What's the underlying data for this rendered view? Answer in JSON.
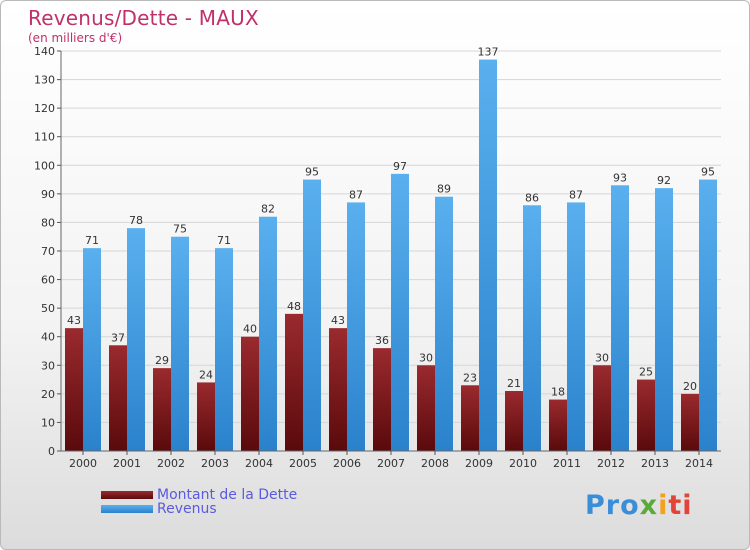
{
  "header": {
    "title": "Revenus/Dette - MAUX",
    "subtitle": "(en milliers d'€)"
  },
  "colors": {
    "title": "#c0306a",
    "dette": "#7a1518",
    "revenus": "#3a98e0",
    "legend_text": "#5a5ae0"
  },
  "legend": {
    "items": [
      {
        "label": "Montant de la Dette",
        "color": "#7a1518"
      },
      {
        "label": "Revenus",
        "color": "#3a98e0"
      }
    ]
  },
  "logo": {
    "text": "Proxiti",
    "parts": [
      "Pro",
      "x",
      "i",
      "ti"
    ]
  },
  "chart_data": {
    "type": "bar",
    "title": "Revenus/Dette - MAUX",
    "subtitle": "(en milliers d'€)",
    "categories": [
      "2000",
      "2001",
      "2002",
      "2003",
      "2004",
      "2005",
      "2006",
      "2007",
      "2008",
      "2009",
      "2010",
      "2011",
      "2012",
      "2013",
      "2014"
    ],
    "series": [
      {
        "name": "Montant de la Dette",
        "values": [
          43,
          37,
          29,
          24,
          40,
          48,
          43,
          36,
          30,
          23,
          21,
          18,
          30,
          25,
          20
        ]
      },
      {
        "name": "Revenus",
        "values": [
          71,
          78,
          75,
          71,
          82,
          95,
          87,
          97,
          89,
          137,
          86,
          87,
          93,
          92,
          95
        ]
      }
    ],
    "ylim": [
      0,
      140
    ],
    "yticks": [
      0,
      10,
      20,
      30,
      40,
      50,
      60,
      70,
      80,
      90,
      100,
      110,
      120,
      130,
      140
    ],
    "grid": true,
    "legend_position": "bottom-left",
    "xlabel": "",
    "ylabel": ""
  }
}
